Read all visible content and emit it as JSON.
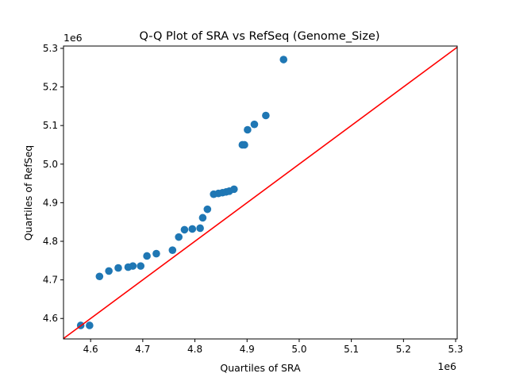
{
  "chart_data": {
    "type": "scatter",
    "title": "Q-Q Plot of SRA vs RefSeq (Genome_Size)",
    "xlabel": "Quartiles of SRA",
    "ylabel": "Quartiles of RefSeq",
    "x_offset_label": "1e6",
    "y_offset_label": "1e6",
    "xlim": [
      4.548,
      5.303
    ],
    "ylim": [
      4.547,
      5.306
    ],
    "x_ticks": [
      "4.6",
      "4.7",
      "4.8",
      "4.9",
      "5.0",
      "5.1",
      "5.2",
      "5.3"
    ],
    "y_ticks": [
      "4.6",
      "4.7",
      "4.8",
      "4.9",
      "5.0",
      "5.1",
      "5.2",
      "5.3"
    ],
    "grid": false,
    "point_color": "#1f77b4",
    "line_color": "#ff0000",
    "reference_line": "y = x",
    "points": [
      [
        4.581,
        4.582
      ],
      [
        4.598,
        4.582
      ],
      [
        4.617,
        4.709
      ],
      [
        4.635,
        4.723
      ],
      [
        4.653,
        4.731
      ],
      [
        4.672,
        4.733
      ],
      [
        4.681,
        4.736
      ],
      [
        4.696,
        4.736
      ],
      [
        4.708,
        4.762
      ],
      [
        4.726,
        4.768
      ],
      [
        4.757,
        4.777
      ],
      [
        4.769,
        4.811
      ],
      [
        4.78,
        4.83
      ],
      [
        4.795,
        4.832
      ],
      [
        4.81,
        4.834
      ],
      [
        4.815,
        4.861
      ],
      [
        4.824,
        4.883
      ],
      [
        4.836,
        4.922
      ],
      [
        4.845,
        4.924
      ],
      [
        4.853,
        4.926
      ],
      [
        4.86,
        4.928
      ],
      [
        4.866,
        4.93
      ],
      [
        4.875,
        4.935
      ],
      [
        4.891,
        5.05
      ],
      [
        4.895,
        5.05
      ],
      [
        4.901,
        5.089
      ],
      [
        4.914,
        5.103
      ],
      [
        4.936,
        5.126
      ],
      [
        4.97,
        5.271
      ]
    ]
  }
}
